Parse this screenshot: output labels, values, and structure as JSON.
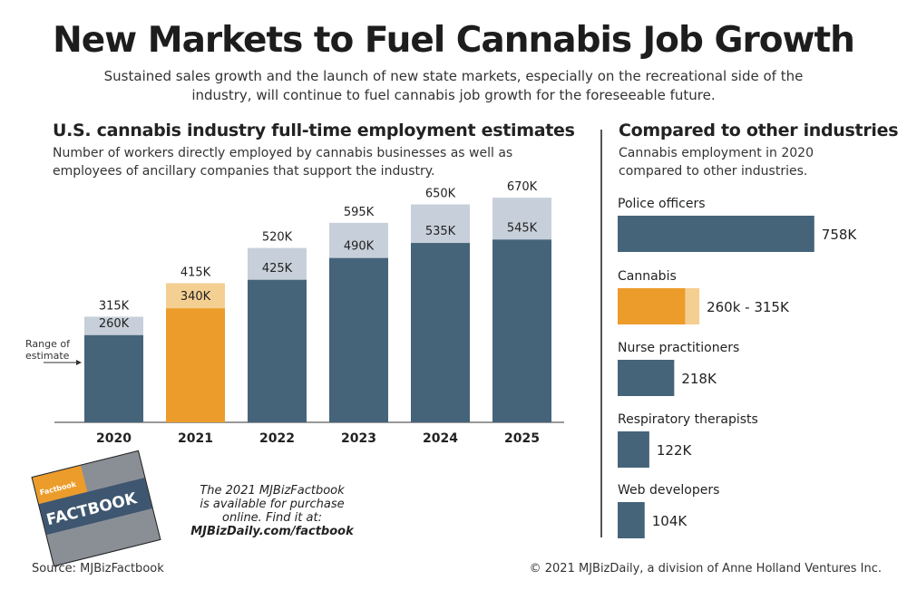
{
  "title": "New Markets to Fuel Cannabis Job Growth",
  "subtitle": "Sustained sales growth and the launch of new state markets, especially on the recreational side of the industry, will continue to fuel cannabis job growth for the foreseeable future.",
  "colors": {
    "dark": "#45647a",
    "light": "#c7d0da",
    "orange": "#ec9c2a",
    "orange_light": "#f4cf92"
  },
  "chart_data": [
    {
      "type": "bar",
      "title": "U.S. cannabis industry full-time employment estimates",
      "subtitle": "Number of workers directly employed by cannabis businesses as well as employees of ancillary companies that support the industry.",
      "annotation": "Range of estimate",
      "categories": [
        "2020",
        "2021",
        "2022",
        "2023",
        "2024",
        "2025"
      ],
      "highlight": "2021",
      "series": [
        {
          "role": "low",
          "values": [
            260,
            340,
            425,
            490,
            535,
            545
          ],
          "labels": [
            "260K",
            "340K",
            "425K",
            "490K",
            "535K",
            "545K"
          ]
        },
        {
          "role": "high",
          "values": [
            315,
            415,
            520,
            595,
            650,
            670
          ],
          "labels": [
            "315K",
            "415K",
            "520K",
            "595K",
            "650K",
            "670K"
          ]
        }
      ],
      "units": "thousands of workers",
      "grid": false
    },
    {
      "type": "bar",
      "orientation": "horizontal",
      "title": "Compared to other industries",
      "subtitle": "Cannabis employment in 2020 compared to other industries.",
      "categories": [
        "Police officers",
        "Cannabis",
        "Nurse practitioners",
        "Respiratory therapists",
        "Web developers"
      ],
      "values": [
        758,
        260,
        218,
        122,
        104
      ],
      "range_high": [
        null,
        315,
        null,
        null,
        null
      ],
      "labels": [
        "758K",
        "260k - 315K",
        "218K",
        "122K",
        "104K"
      ],
      "highlight": "Cannabis",
      "grid": false
    }
  ],
  "promo": {
    "line1": "The 2021 MJBizFactbook",
    "line2": "is available for purchase",
    "line3": "online. Find it at:",
    "link": "MJBizDaily.com/factbook"
  },
  "book": {
    "cover_title": "FACTBOOK",
    "brand": "Factbook"
  },
  "source": "Source: MJBizFactbook",
  "copyright": "© 2021 MJBizDaily, a division of Anne Holland Ventures Inc."
}
